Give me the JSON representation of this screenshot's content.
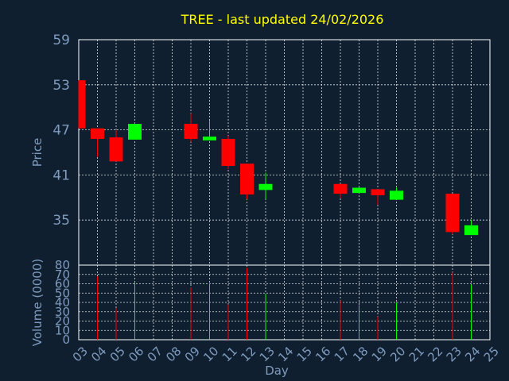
{
  "chart_data": [
    {
      "type": "candlestick",
      "title": "TREE - last updated 24/02/2026",
      "ylabel": "Price",
      "ylim": [
        29,
        59
      ],
      "yticks": [
        35,
        41,
        47,
        53,
        59
      ],
      "grid": true,
      "colors": {
        "up": "#00ff00",
        "down": "#ff0000",
        "grid": "#ffffff",
        "axis_text": "#7f9bbd",
        "title": "#ffff00",
        "background": "#0f1f30"
      },
      "candles": [
        {
          "day": "03",
          "open": 53.6,
          "high": 53.6,
          "low": 47.2,
          "close": 47.2
        },
        {
          "day": "04",
          "open": 47.2,
          "high": 47.2,
          "low": 43.4,
          "close": 45.8
        },
        {
          "day": "05",
          "open": 46.0,
          "high": 47.0,
          "low": 42.8,
          "close": 42.8
        },
        {
          "day": "06",
          "open": 45.7,
          "high": 48.0,
          "low": 45.7,
          "close": 47.8
        },
        {
          "day": "09",
          "open": 47.8,
          "high": 49.2,
          "low": 45.4,
          "close": 45.8
        },
        {
          "day": "10",
          "open": 45.6,
          "high": 48.2,
          "low": 45.6,
          "close": 46.1
        },
        {
          "day": "11",
          "open": 45.8,
          "high": 46.2,
          "low": 41.8,
          "close": 42.2
        },
        {
          "day": "12",
          "open": 42.5,
          "high": 42.5,
          "low": 37.8,
          "close": 38.4
        },
        {
          "day": "13",
          "open": 39.0,
          "high": 41.3,
          "low": 37.8,
          "close": 39.8
        },
        {
          "day": "17",
          "open": 39.8,
          "high": 39.8,
          "low": 37.9,
          "close": 38.5
        },
        {
          "day": "18",
          "open": 38.6,
          "high": 39.5,
          "low": 38.6,
          "close": 39.3
        },
        {
          "day": "19",
          "open": 39.1,
          "high": 39.1,
          "low": 37.0,
          "close": 38.3
        },
        {
          "day": "20",
          "open": 37.7,
          "high": 39.3,
          "low": 37.7,
          "close": 38.9
        },
        {
          "day": "23",
          "open": 38.5,
          "high": 38.5,
          "low": 33.1,
          "close": 33.4
        },
        {
          "day": "24",
          "open": 33.0,
          "high": 35.0,
          "low": 33.0,
          "close": 34.3
        }
      ]
    },
    {
      "type": "bar",
      "ylabel": "Volume (0000)",
      "ylim": [
        0,
        80
      ],
      "yticks": [
        0,
        10,
        20,
        30,
        40,
        50,
        60,
        70,
        80
      ],
      "xlabel": "Day",
      "x_tick_labels": [
        "03",
        "04",
        "05",
        "06",
        "07",
        "08",
        "09",
        "10",
        "11",
        "12",
        "13",
        "14",
        "15",
        "16",
        "17",
        "18",
        "19",
        "20",
        "21",
        "22",
        "23",
        "24",
        "25"
      ],
      "bars": [
        {
          "day": "04",
          "value": 68,
          "color": "down"
        },
        {
          "day": "05",
          "value": 34,
          "color": "down"
        },
        {
          "day": "06",
          "value": 62,
          "color": "up"
        },
        {
          "day": "09",
          "value": 56,
          "color": "down"
        },
        {
          "day": "10",
          "value": 60,
          "color": "up"
        },
        {
          "day": "11",
          "value": 38,
          "color": "down"
        },
        {
          "day": "12",
          "value": 77,
          "color": "down"
        },
        {
          "day": "13",
          "value": 49,
          "color": "up"
        },
        {
          "day": "17",
          "value": 42,
          "color": "down"
        },
        {
          "day": "18",
          "value": 37,
          "color": "up"
        },
        {
          "day": "19",
          "value": 25,
          "color": "down"
        },
        {
          "day": "20",
          "value": 40,
          "color": "up"
        },
        {
          "day": "23",
          "value": 72,
          "color": "down"
        },
        {
          "day": "24",
          "value": 59,
          "color": "up"
        }
      ]
    }
  ]
}
